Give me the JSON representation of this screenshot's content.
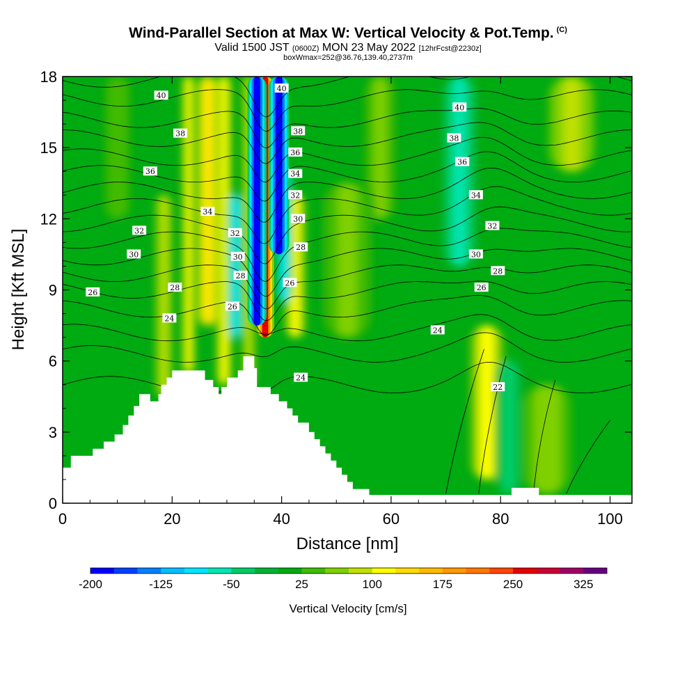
{
  "titles": {
    "main": "Wind-Parallel Section at Max W: Vertical Velocity & Pot.Temp.",
    "copyright": "(C)",
    "valid_prefix": "Valid 1500 JST",
    "valid_zulu": "(0600Z)",
    "valid_date": "MON 23 May 2022",
    "forecast": "[12hrFcst@2230z]",
    "box": "boxWmax=252@36.76,139.40,2737m"
  },
  "chart_data": {
    "type": "heatmap",
    "title": "Wind-Parallel Section at Max W: Vertical Velocity & Pot.Temp.",
    "xlabel": "Distance [nm]",
    "ylabel": "Height [Kft MSL]",
    "xlim": [
      0,
      104
    ],
    "ylim": [
      0,
      18
    ],
    "x_ticks": [
      0,
      20,
      40,
      60,
      80,
      100
    ],
    "y_ticks": [
      0,
      3,
      6,
      9,
      12,
      15,
      18
    ],
    "colorbar": {
      "title": "Vertical Velocity [cm/s]",
      "tick_labels": [
        "-200",
        "-125",
        "-50",
        "25",
        "100",
        "175",
        "250",
        "325"
      ],
      "levels": [
        -200,
        -175,
        -150,
        -125,
        -100,
        -75,
        -50,
        -25,
        0,
        25,
        50,
        75,
        100,
        125,
        150,
        175,
        200,
        225,
        250,
        275,
        300,
        325,
        350
      ],
      "colors": [
        "#0000ff",
        "#0040ff",
        "#0080ff",
        "#00bfff",
        "#00e6ff",
        "#00e6b3",
        "#00cc66",
        "#00b333",
        "#00aa11",
        "#40bb00",
        "#80d000",
        "#c0e000",
        "#ffff00",
        "#ffdd00",
        "#ffbb00",
        "#ff9900",
        "#ff7700",
        "#ff4400",
        "#e60000",
        "#cc0033",
        "#a00066",
        "#660080"
      ]
    },
    "vertical_velocity_features": [
      {
        "x_center": 37.0,
        "half_width": 1.3,
        "y_bottom": 7.0,
        "y_top": 18,
        "w": 260
      },
      {
        "x_center": 35.5,
        "half_width": 1.4,
        "y_bottom": 7.5,
        "y_top": 18,
        "w": -200
      },
      {
        "x_center": 39.5,
        "half_width": 1.5,
        "y_bottom": 10.5,
        "y_top": 18,
        "w": -190
      },
      {
        "x_center": 42.5,
        "half_width": 1.6,
        "y_bottom": 7.0,
        "y_top": 13.0,
        "w": 110
      },
      {
        "x_center": 40.5,
        "half_width": 1.2,
        "y_bottom": 8.5,
        "y_top": 14.0,
        "w": -100
      },
      {
        "x_center": 26.5,
        "half_width": 1.5,
        "y_bottom": 7.5,
        "y_top": 18,
        "w": 140
      },
      {
        "x_center": 29.5,
        "half_width": 1.2,
        "y_bottom": 5.0,
        "y_top": 18,
        "w": 110
      },
      {
        "x_center": 31.5,
        "half_width": 1.2,
        "y_bottom": 7.0,
        "y_top": 13.0,
        "w": -80
      },
      {
        "x_center": 23.0,
        "half_width": 1.0,
        "y_bottom": 5.5,
        "y_top": 18,
        "w": 105
      },
      {
        "x_center": 18.5,
        "half_width": 1.3,
        "y_bottom": 4.5,
        "y_top": 13.0,
        "w": 90
      },
      {
        "x_center": 34.0,
        "half_width": 1.0,
        "y_bottom": 5.0,
        "y_top": 18,
        "w": 95
      },
      {
        "x_center": 77.5,
        "half_width": 2.6,
        "y_bottom": 1.0,
        "y_top": 7.5,
        "w": 110
      },
      {
        "x_center": 72.5,
        "half_width": 2.5,
        "y_bottom": 10.0,
        "y_top": 18,
        "w": -70
      },
      {
        "x_center": 81.5,
        "half_width": 2.0,
        "y_bottom": 0.4,
        "y_top": 6.0,
        "w": -40
      },
      {
        "x_center": 88.5,
        "half_width": 3.5,
        "y_bottom": 0.4,
        "y_top": 5.0,
        "w": 70
      },
      {
        "x_center": 93.0,
        "half_width": 3.5,
        "y_bottom": 14.0,
        "y_top": 18,
        "w": 90
      },
      {
        "x_center": 58.0,
        "half_width": 2.5,
        "y_bottom": 12.0,
        "y_top": 18,
        "w": 60
      },
      {
        "x_center": 52.0,
        "half_width": 4.0,
        "y_bottom": 7.0,
        "y_top": 13.5,
        "w": 55
      },
      {
        "x_center": 10.0,
        "half_width": 2.0,
        "y_bottom": 12.0,
        "y_top": 18,
        "w": 40
      }
    ],
    "theta_contour_labels": [
      {
        "value": "40",
        "x": 18.0,
        "y": 17.2
      },
      {
        "value": "38",
        "x": 21.5,
        "y": 15.6
      },
      {
        "value": "36",
        "x": 16.0,
        "y": 14.0
      },
      {
        "value": "34",
        "x": 26.5,
        "y": 12.3
      },
      {
        "value": "32",
        "x": 14.0,
        "y": 11.5
      },
      {
        "value": "30",
        "x": 13.0,
        "y": 10.5
      },
      {
        "value": "28",
        "x": 20.5,
        "y": 9.1
      },
      {
        "value": "26",
        "x": 5.5,
        "y": 8.9
      },
      {
        "value": "24",
        "x": 19.5,
        "y": 7.8
      },
      {
        "value": "32",
        "x": 31.5,
        "y": 11.4
      },
      {
        "value": "30",
        "x": 32.0,
        "y": 10.4
      },
      {
        "value": "28",
        "x": 32.5,
        "y": 9.6
      },
      {
        "value": "26",
        "x": 31.0,
        "y": 8.3
      },
      {
        "value": "40",
        "x": 40.0,
        "y": 17.5
      },
      {
        "value": "38",
        "x": 43.0,
        "y": 15.7
      },
      {
        "value": "36",
        "x": 42.5,
        "y": 14.8
      },
      {
        "value": "34",
        "x": 42.5,
        "y": 13.9
      },
      {
        "value": "32",
        "x": 42.5,
        "y": 13.0
      },
      {
        "value": "30",
        "x": 43.0,
        "y": 12.0
      },
      {
        "value": "28",
        "x": 43.5,
        "y": 10.8
      },
      {
        "value": "26",
        "x": 41.5,
        "y": 9.3
      },
      {
        "value": "24",
        "x": 43.5,
        "y": 5.3
      },
      {
        "value": "40",
        "x": 72.5,
        "y": 16.7
      },
      {
        "value": "38",
        "x": 71.5,
        "y": 15.4
      },
      {
        "value": "36",
        "x": 73.0,
        "y": 14.4
      },
      {
        "value": "34",
        "x": 75.5,
        "y": 13.0
      },
      {
        "value": "32",
        "x": 78.5,
        "y": 11.7
      },
      {
        "value": "30",
        "x": 75.5,
        "y": 10.5
      },
      {
        "value": "28",
        "x": 79.5,
        "y": 9.8
      },
      {
        "value": "26",
        "x": 76.5,
        "y": 9.1
      },
      {
        "value": "24",
        "x": 68.5,
        "y": 7.3
      },
      {
        "value": "22",
        "x": 79.5,
        "y": 4.9
      }
    ]
  }
}
